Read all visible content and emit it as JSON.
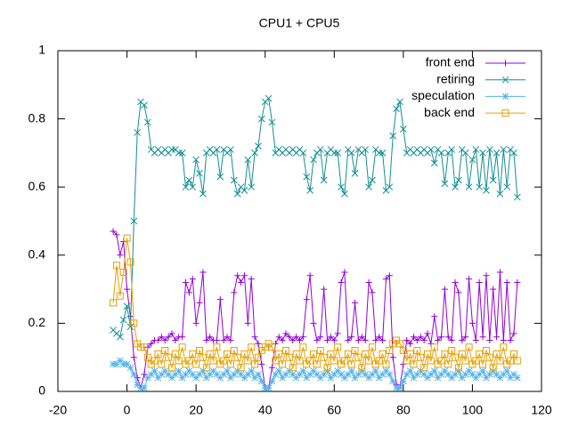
{
  "chart_data": {
    "type": "line",
    "title": "CPU1 + CPU5",
    "x": [
      -4,
      -3,
      -2,
      -1,
      0,
      1,
      2,
      3,
      4,
      5,
      6,
      7,
      8,
      9,
      10,
      11,
      12,
      13,
      14,
      15,
      16,
      17,
      18,
      19,
      20,
      21,
      22,
      23,
      24,
      25,
      26,
      27,
      28,
      29,
      30,
      31,
      32,
      33,
      34,
      35,
      36,
      37,
      38,
      39,
      40,
      41,
      42,
      43,
      44,
      45,
      46,
      47,
      48,
      49,
      50,
      51,
      52,
      53,
      54,
      55,
      56,
      57,
      58,
      59,
      60,
      61,
      62,
      63,
      64,
      65,
      66,
      67,
      68,
      69,
      70,
      71,
      72,
      73,
      74,
      75,
      76,
      77,
      78,
      79,
      80,
      81,
      82,
      83,
      84,
      85,
      86,
      87,
      88,
      89,
      90,
      91,
      92,
      93,
      94,
      95,
      96,
      97,
      98,
      99,
      100,
      101,
      102,
      103,
      104,
      105,
      106,
      107,
      108,
      109,
      110,
      111,
      112,
      113
    ],
    "series": [
      {
        "name": "front end",
        "color": "#9400d3",
        "marker": "plus",
        "values": [
          0.47,
          0.46,
          0.4,
          0.44,
          0.3,
          0.22,
          0.1,
          0.04,
          0.01,
          0.05,
          0.13,
          0.14,
          0.15,
          0.15,
          0.16,
          0.15,
          0.16,
          0.17,
          0.15,
          0.16,
          0.16,
          0.32,
          0.29,
          0.33,
          0.2,
          0.26,
          0.35,
          0.15,
          0.16,
          0.15,
          0.15,
          0.27,
          0.15,
          0.16,
          0.15,
          0.29,
          0.34,
          0.32,
          0.34,
          0.2,
          0.33,
          0.16,
          0.14,
          0.08,
          0.01,
          0.01,
          0.07,
          0.14,
          0.16,
          0.15,
          0.17,
          0.16,
          0.15,
          0.16,
          0.15,
          0.16,
          0.27,
          0.34,
          0.2,
          0.15,
          0.16,
          0.3,
          0.15,
          0.16,
          0.15,
          0.17,
          0.32,
          0.35,
          0.15,
          0.16,
          0.26,
          0.15,
          0.16,
          0.15,
          0.32,
          0.29,
          0.15,
          0.16,
          0.15,
          0.33,
          0.34,
          0.1,
          0.02,
          0.01,
          0.08,
          0.15,
          0.14,
          0.16,
          0.15,
          0.16,
          0.15,
          0.17,
          0.14,
          0.22,
          0.15,
          0.16,
          0.3,
          0.16,
          0.15,
          0.32,
          0.29,
          0.15,
          0.16,
          0.33,
          0.2,
          0.15,
          0.32,
          0.16,
          0.34,
          0.15,
          0.3,
          0.16,
          0.35,
          0.15,
          0.32,
          0.15,
          0.17,
          0.32
        ]
      },
      {
        "name": "retiring",
        "color": "#148f94",
        "marker": "cross",
        "values": [
          0.18,
          0.17,
          0.16,
          0.21,
          0.25,
          0.19,
          0.5,
          0.76,
          0.85,
          0.84,
          0.79,
          0.71,
          0.7,
          0.71,
          0.7,
          0.71,
          0.7,
          0.71,
          0.71,
          0.7,
          0.7,
          0.6,
          0.62,
          0.6,
          0.68,
          0.64,
          0.58,
          0.7,
          0.71,
          0.7,
          0.71,
          0.63,
          0.71,
          0.7,
          0.71,
          0.62,
          0.58,
          0.6,
          0.59,
          0.68,
          0.6,
          0.7,
          0.72,
          0.8,
          0.85,
          0.86,
          0.79,
          0.7,
          0.71,
          0.7,
          0.71,
          0.7,
          0.71,
          0.7,
          0.71,
          0.7,
          0.63,
          0.59,
          0.68,
          0.7,
          0.71,
          0.62,
          0.7,
          0.71,
          0.7,
          0.7,
          0.6,
          0.58,
          0.71,
          0.7,
          0.64,
          0.71,
          0.7,
          0.71,
          0.6,
          0.62,
          0.71,
          0.7,
          0.7,
          0.59,
          0.6,
          0.75,
          0.83,
          0.85,
          0.77,
          0.7,
          0.71,
          0.7,
          0.71,
          0.7,
          0.71,
          0.7,
          0.71,
          0.67,
          0.71,
          0.7,
          0.61,
          0.7,
          0.71,
          0.6,
          0.62,
          0.71,
          0.7,
          0.6,
          0.68,
          0.71,
          0.6,
          0.7,
          0.59,
          0.71,
          0.62,
          0.7,
          0.58,
          0.71,
          0.6,
          0.71,
          0.7,
          0.57
        ]
      },
      {
        "name": "speculation",
        "color": "#56b4e9",
        "marker": "star",
        "values": [
          0.08,
          0.08,
          0.09,
          0.08,
          0.08,
          0.07,
          0.05,
          0.02,
          0.01,
          0.01,
          0.04,
          0.05,
          0.06,
          0.04,
          0.05,
          0.06,
          0.05,
          0.04,
          0.05,
          0.06,
          0.04,
          0.05,
          0.06,
          0.05,
          0.04,
          0.05,
          0.06,
          0.04,
          0.05,
          0.06,
          0.05,
          0.04,
          0.05,
          0.06,
          0.04,
          0.05,
          0.06,
          0.05,
          0.04,
          0.05,
          0.06,
          0.04,
          0.05,
          0.03,
          0.01,
          0.01,
          0.03,
          0.05,
          0.06,
          0.04,
          0.05,
          0.06,
          0.05,
          0.04,
          0.05,
          0.06,
          0.04,
          0.05,
          0.06,
          0.05,
          0.04,
          0.05,
          0.06,
          0.04,
          0.05,
          0.06,
          0.05,
          0.04,
          0.05,
          0.06,
          0.04,
          0.05,
          0.06,
          0.05,
          0.04,
          0.05,
          0.06,
          0.04,
          0.05,
          0.06,
          0.05,
          0.03,
          0.01,
          0.01,
          0.03,
          0.05,
          0.06,
          0.04,
          0.05,
          0.06,
          0.05,
          0.04,
          0.05,
          0.06,
          0.04,
          0.05,
          0.06,
          0.05,
          0.04,
          0.05,
          0.06,
          0.04,
          0.05,
          0.06,
          0.05,
          0.04,
          0.05,
          0.06,
          0.04,
          0.05,
          0.06,
          0.05,
          0.04,
          0.05,
          0.06,
          0.04,
          0.05,
          0.04
        ]
      },
      {
        "name": "back end",
        "color": "#e69f00",
        "marker": "square",
        "values": [
          0.26,
          0.37,
          0.28,
          0.35,
          0.45,
          0.38,
          0.2,
          0.14,
          0.13,
          0.13,
          0.1,
          0.08,
          0.09,
          0.11,
          0.08,
          0.12,
          0.1,
          0.07,
          0.11,
          0.09,
          0.13,
          0.08,
          0.09,
          0.11,
          0.08,
          0.12,
          0.1,
          0.07,
          0.11,
          0.09,
          0.13,
          0.08,
          0.09,
          0.11,
          0.08,
          0.12,
          0.1,
          0.07,
          0.11,
          0.09,
          0.13,
          0.08,
          0.1,
          0.12,
          0.13,
          0.14,
          0.13,
          0.09,
          0.11,
          0.08,
          0.12,
          0.1,
          0.07,
          0.11,
          0.09,
          0.13,
          0.08,
          0.09,
          0.11,
          0.08,
          0.12,
          0.1,
          0.07,
          0.11,
          0.09,
          0.13,
          0.08,
          0.09,
          0.11,
          0.08,
          0.12,
          0.1,
          0.07,
          0.11,
          0.09,
          0.13,
          0.08,
          0.09,
          0.11,
          0.08,
          0.12,
          0.14,
          0.15,
          0.14,
          0.12,
          0.09,
          0.11,
          0.08,
          0.12,
          0.1,
          0.07,
          0.11,
          0.09,
          0.13,
          0.08,
          0.09,
          0.11,
          0.08,
          0.12,
          0.1,
          0.07,
          0.11,
          0.09,
          0.13,
          0.08,
          0.09,
          0.11,
          0.08,
          0.12,
          0.1,
          0.07,
          0.11,
          0.09,
          0.13,
          0.08,
          0.09,
          0.11,
          0.09
        ]
      }
    ],
    "xlim": [
      -20,
      120
    ],
    "xticks": [
      -20,
      0,
      20,
      40,
      60,
      80,
      100,
      120
    ],
    "ylim": [
      0,
      1
    ],
    "yticks": [
      0,
      0.2,
      0.4,
      0.6,
      0.8,
      1
    ],
    "legend": "top-right",
    "grid": false
  }
}
